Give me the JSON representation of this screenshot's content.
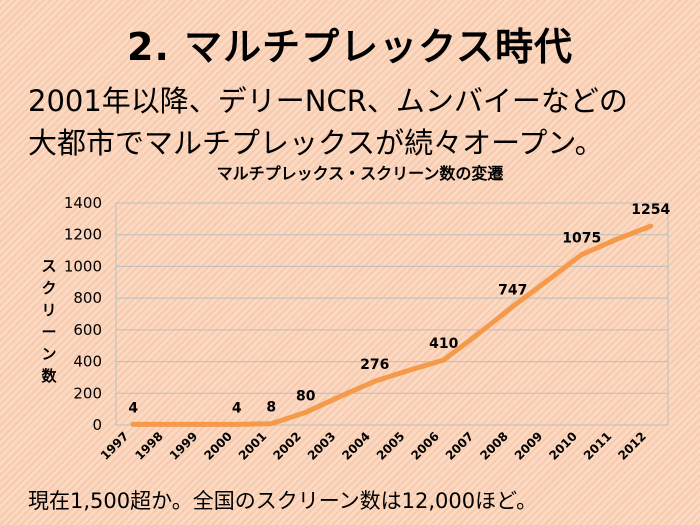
{
  "slide": {
    "title": "2. マルチプレックス時代",
    "lead_line1": "2001年以降、デリーNCR、ムンバイーなどの",
    "lead_line2": "大都市でマルチプレックスが続々オープン。",
    "footer": "現在1,500超か。全国のスクリーン数は12,000ほど。"
  },
  "chart_data": {
    "type": "line",
    "title": "マルチプレックス・スクリーン数の変遷",
    "xlabel": "",
    "ylabel": "スクリーン数",
    "categories": [
      "1997",
      "1998",
      "1999",
      "2000",
      "2001",
      "2002",
      "2003",
      "2004",
      "2005",
      "2006",
      "2007",
      "2008",
      "2009",
      "2010",
      "2011",
      "2012"
    ],
    "values": [
      4,
      4,
      4,
      4,
      8,
      80,
      180,
      276,
      345,
      410,
      575,
      747,
      910,
      1075,
      1170,
      1254
    ],
    "data_labels": [
      {
        "index": 0,
        "text": "4"
      },
      {
        "index": 3,
        "text": "4"
      },
      {
        "index": 4,
        "text": "8"
      },
      {
        "index": 5,
        "text": "80"
      },
      {
        "index": 7,
        "text": "276"
      },
      {
        "index": 9,
        "text": "410"
      },
      {
        "index": 11,
        "text": "747"
      },
      {
        "index": 13,
        "text": "1075"
      },
      {
        "index": 15,
        "text": "1254"
      }
    ],
    "ylim": [
      0,
      1400
    ],
    "yticks": [
      0,
      200,
      400,
      600,
      800,
      1000,
      1200,
      1400
    ],
    "grid": true,
    "line_color": "#f59a4a",
    "grid_color": "#bdbdbd"
  }
}
